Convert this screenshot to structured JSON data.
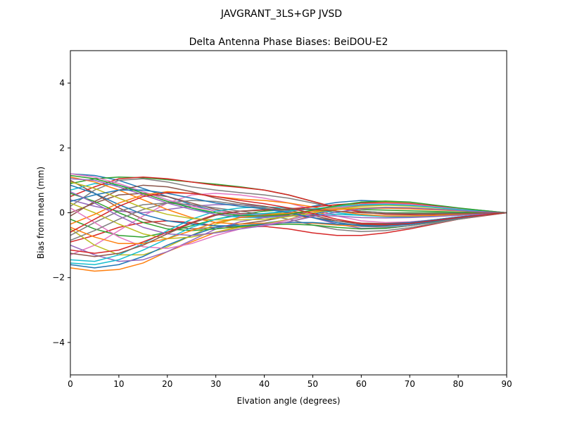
{
  "chart_data": {
    "type": "line",
    "suptitle": "JAVGRANT_3LS+GP JVSD",
    "title": "Delta Antenna Phase Biases: BeiDOU-E2",
    "xlabel": "Elvation angle (degrees)",
    "ylabel": "Bias from mean (mm)",
    "xlim": [
      0,
      90
    ],
    "ylim": [
      -5,
      5
    ],
    "xticks": [
      0,
      10,
      20,
      30,
      40,
      50,
      60,
      70,
      80,
      90
    ],
    "yticks": [
      -4,
      -2,
      0,
      2,
      4
    ],
    "ytick_labels": [
      "−4",
      "−2",
      "0",
      "2",
      "4"
    ],
    "grid": false,
    "legend": "none",
    "x": [
      0,
      5,
      10,
      15,
      20,
      25,
      30,
      35,
      40,
      45,
      50,
      55,
      60,
      65,
      70,
      75,
      80,
      85,
      90
    ],
    "colors": [
      "#1f77b4",
      "#ff7f0e",
      "#2ca02c",
      "#d62728",
      "#9467bd",
      "#8c564b",
      "#e377c2",
      "#7f7f7f",
      "#bcbd22",
      "#17becf"
    ],
    "series": [
      {
        "values": [
          1.2,
          1.15,
          1.0,
          0.75,
          0.5,
          0.25,
          0.05,
          -0.05,
          -0.05,
          0.05,
          0.2,
          0.32,
          0.38,
          0.35,
          0.3,
          0.22,
          0.14,
          0.07,
          0.0
        ]
      },
      {
        "values": [
          -1.7,
          -1.8,
          -1.75,
          -1.55,
          -1.2,
          -0.9,
          -0.6,
          -0.42,
          -0.38,
          -0.28,
          -0.1,
          0.1,
          0.25,
          0.3,
          0.28,
          0.2,
          0.12,
          0.06,
          0.0
        ]
      },
      {
        "values": [
          0.9,
          1.05,
          1.1,
          1.08,
          1.02,
          0.95,
          0.88,
          0.8,
          0.7,
          0.55,
          0.35,
          0.15,
          0.05,
          0.0,
          0.0,
          0.0,
          0.0,
          0.0,
          0.0
        ]
      },
      {
        "values": [
          -0.9,
          -0.7,
          -0.45,
          -0.3,
          -0.25,
          -0.3,
          -0.4,
          -0.45,
          -0.42,
          -0.5,
          -0.62,
          -0.7,
          -0.7,
          -0.62,
          -0.5,
          -0.35,
          -0.2,
          -0.1,
          0.0
        ]
      },
      {
        "values": [
          0.4,
          0.2,
          0.05,
          0.0,
          0.1,
          0.2,
          0.25,
          0.25,
          0.2,
          0.05,
          -0.15,
          -0.35,
          -0.48,
          -0.48,
          -0.4,
          -0.28,
          -0.16,
          -0.08,
          0.0
        ]
      },
      {
        "values": [
          1.0,
          0.6,
          0.15,
          -0.2,
          -0.4,
          -0.5,
          -0.45,
          -0.35,
          -0.25,
          -0.1,
          0.05,
          0.2,
          0.3,
          0.32,
          0.28,
          0.2,
          0.12,
          0.05,
          0.0
        ]
      },
      {
        "values": [
          -1.3,
          -1.0,
          -0.55,
          -0.1,
          0.3,
          0.55,
          0.6,
          0.55,
          0.45,
          0.3,
          0.1,
          -0.1,
          -0.25,
          -0.3,
          -0.28,
          -0.22,
          -0.14,
          -0.07,
          0.0
        ]
      },
      {
        "values": [
          0.2,
          0.7,
          1.0,
          1.05,
          0.95,
          0.8,
          0.7,
          0.62,
          0.55,
          0.45,
          0.3,
          0.15,
          0.05,
          0.0,
          -0.02,
          -0.02,
          -0.01,
          0.0,
          0.0
        ]
      },
      {
        "values": [
          -0.5,
          -1.0,
          -1.3,
          -1.3,
          -1.05,
          -0.7,
          -0.35,
          -0.15,
          -0.05,
          0.0,
          0.05,
          0.1,
          0.15,
          0.17,
          0.16,
          0.12,
          0.08,
          0.04,
          0.0
        ]
      },
      {
        "values": [
          0.7,
          0.9,
          0.85,
          0.65,
          0.4,
          0.15,
          -0.05,
          -0.15,
          -0.15,
          -0.1,
          -0.05,
          -0.05,
          -0.08,
          -0.1,
          -0.1,
          -0.08,
          -0.05,
          -0.02,
          0.0
        ]
      },
      {
        "values": [
          -1.6,
          -1.7,
          -1.6,
          -1.35,
          -1.0,
          -0.7,
          -0.45,
          -0.35,
          -0.32,
          -0.22,
          -0.05,
          0.12,
          0.22,
          0.26,
          0.24,
          0.18,
          0.11,
          0.05,
          0.0
        ]
      },
      {
        "values": [
          1.1,
          0.95,
          0.7,
          0.4,
          0.1,
          -0.15,
          -0.3,
          -0.35,
          -0.32,
          -0.3,
          -0.32,
          -0.38,
          -0.42,
          -0.4,
          -0.34,
          -0.25,
          -0.15,
          -0.07,
          0.0
        ]
      },
      {
        "values": [
          -0.2,
          -0.5,
          -0.7,
          -0.75,
          -0.6,
          -0.4,
          -0.2,
          -0.05,
          0.05,
          0.1,
          0.12,
          0.12,
          0.1,
          0.08,
          0.06,
          0.04,
          0.02,
          0.01,
          0.0
        ]
      },
      {
        "values": [
          0.5,
          0.8,
          1.05,
          1.1,
          1.05,
          0.95,
          0.85,
          0.78,
          0.7,
          0.55,
          0.35,
          0.15,
          0.02,
          -0.05,
          -0.06,
          -0.05,
          -0.03,
          -0.01,
          0.0
        ]
      },
      {
        "values": [
          -1.0,
          -1.3,
          -1.5,
          -1.45,
          -1.2,
          -0.85,
          -0.5,
          -0.28,
          -0.15,
          -0.05,
          0.05,
          0.15,
          0.22,
          0.25,
          0.23,
          0.17,
          0.1,
          0.05,
          0.0
        ]
      },
      {
        "values": [
          0.0,
          0.3,
          0.55,
          0.6,
          0.5,
          0.3,
          0.1,
          -0.02,
          -0.05,
          -0.08,
          -0.15,
          -0.25,
          -0.32,
          -0.33,
          -0.3,
          -0.22,
          -0.13,
          -0.06,
          0.0
        ]
      },
      {
        "values": [
          1.2,
          1.1,
          0.9,
          0.65,
          0.4,
          0.2,
          0.05,
          -0.05,
          -0.08,
          -0.05,
          0.05,
          0.2,
          0.3,
          0.34,
          0.3,
          0.22,
          0.13,
          0.06,
          0.0
        ]
      },
      {
        "values": [
          -0.7,
          -0.3,
          0.05,
          0.25,
          0.3,
          0.25,
          0.15,
          0.05,
          -0.05,
          -0.2,
          -0.38,
          -0.52,
          -0.58,
          -0.55,
          -0.46,
          -0.33,
          -0.2,
          -0.09,
          0.0
        ]
      },
      {
        "values": [
          0.3,
          0.0,
          -0.35,
          -0.65,
          -0.8,
          -0.75,
          -0.6,
          -0.45,
          -0.35,
          -0.2,
          0.0,
          0.18,
          0.3,
          0.33,
          0.29,
          0.21,
          0.13,
          0.06,
          0.0
        ]
      },
      {
        "values": [
          -1.45,
          -1.5,
          -1.3,
          -0.95,
          -0.55,
          -0.2,
          0.05,
          0.15,
          0.18,
          0.15,
          0.08,
          0.0,
          -0.08,
          -0.12,
          -0.13,
          -0.11,
          -0.07,
          -0.03,
          0.0
        ]
      },
      {
        "values": [
          0.85,
          0.6,
          0.25,
          -0.05,
          -0.25,
          -0.35,
          -0.4,
          -0.4,
          -0.35,
          -0.3,
          -0.3,
          -0.35,
          -0.38,
          -0.36,
          -0.3,
          -0.22,
          -0.13,
          -0.06,
          0.0
        ]
      },
      {
        "values": [
          -0.35,
          -0.05,
          0.3,
          0.55,
          0.65,
          0.6,
          0.5,
          0.42,
          0.38,
          0.3,
          0.18,
          0.05,
          -0.05,
          -0.1,
          -0.1,
          -0.08,
          -0.05,
          -0.02,
          0.0
        ]
      },
      {
        "values": [
          0.6,
          0.35,
          0.0,
          -0.3,
          -0.5,
          -0.55,
          -0.5,
          -0.42,
          -0.38,
          -0.35,
          -0.38,
          -0.45,
          -0.5,
          -0.48,
          -0.4,
          -0.29,
          -0.18,
          -0.08,
          0.0
        ]
      },
      {
        "values": [
          -1.15,
          -1.25,
          -1.15,
          -0.9,
          -0.6,
          -0.3,
          -0.05,
          0.05,
          0.08,
          0.12,
          0.18,
          0.25,
          0.3,
          0.31,
          0.28,
          0.21,
          0.13,
          0.06,
          0.0
        ]
      },
      {
        "values": [
          1.05,
          1.0,
          0.8,
          0.55,
          0.3,
          0.1,
          -0.05,
          -0.12,
          -0.12,
          -0.1,
          -0.08,
          -0.1,
          -0.15,
          -0.16,
          -0.15,
          -0.12,
          -0.08,
          -0.04,
          0.0
        ]
      },
      {
        "values": [
          -0.1,
          0.35,
          0.7,
          0.85,
          0.8,
          0.65,
          0.45,
          0.3,
          0.2,
          0.08,
          -0.08,
          -0.25,
          -0.36,
          -0.38,
          -0.33,
          -0.24,
          -0.15,
          -0.07,
          0.0
        ]
      },
      {
        "values": [
          0.15,
          -0.3,
          -0.75,
          -1.05,
          -1.1,
          -0.95,
          -0.7,
          -0.5,
          -0.38,
          -0.22,
          -0.02,
          0.15,
          0.26,
          0.29,
          0.26,
          0.19,
          0.12,
          0.05,
          0.0
        ]
      },
      {
        "values": [
          -0.85,
          -0.55,
          -0.2,
          0.1,
          0.3,
          0.38,
          0.35,
          0.25,
          0.15,
          0.02,
          -0.15,
          -0.3,
          -0.42,
          -0.45,
          -0.4,
          -0.3,
          -0.18,
          -0.08,
          0.0
        ]
      },
      {
        "values": [
          0.95,
          0.75,
          0.45,
          0.15,
          -0.05,
          -0.18,
          -0.22,
          -0.22,
          -0.2,
          -0.12,
          0.0,
          0.12,
          0.2,
          0.23,
          0.21,
          0.16,
          0.1,
          0.05,
          0.0
        ]
      },
      {
        "values": [
          -1.55,
          -1.6,
          -1.45,
          -1.15,
          -0.8,
          -0.45,
          -0.2,
          -0.08,
          -0.02,
          0.05,
          0.12,
          0.2,
          0.25,
          0.26,
          0.23,
          0.17,
          0.1,
          0.05,
          0.0
        ]
      },
      {
        "values": [
          0.35,
          0.55,
          0.7,
          0.7,
          0.6,
          0.45,
          0.3,
          0.2,
          0.12,
          0.0,
          -0.15,
          -0.3,
          -0.4,
          -0.41,
          -0.36,
          -0.26,
          -0.16,
          -0.07,
          0.0
        ]
      },
      {
        "values": [
          -0.45,
          -0.75,
          -0.95,
          -0.95,
          -0.8,
          -0.55,
          -0.3,
          -0.15,
          -0.08,
          -0.02,
          0.05,
          0.1,
          0.13,
          0.14,
          0.12,
          0.09,
          0.06,
          0.03,
          0.0
        ]
      },
      {
        "values": [
          1.15,
          1.05,
          0.85,
          0.6,
          0.35,
          0.15,
          0.0,
          -0.08,
          -0.1,
          -0.05,
          0.08,
          0.22,
          0.33,
          0.36,
          0.33,
          0.24,
          0.15,
          0.07,
          0.0
        ]
      },
      {
        "values": [
          -0.6,
          -0.2,
          0.2,
          0.5,
          0.62,
          0.6,
          0.5,
          0.38,
          0.28,
          0.15,
          -0.02,
          -0.2,
          -0.33,
          -0.37,
          -0.33,
          -0.24,
          -0.15,
          -0.07,
          0.0
        ]
      },
      {
        "values": [
          0.65,
          0.3,
          -0.1,
          -0.45,
          -0.65,
          -0.7,
          -0.62,
          -0.5,
          -0.4,
          -0.28,
          -0.12,
          0.02,
          0.12,
          0.16,
          0.15,
          0.11,
          0.07,
          0.03,
          0.0
        ]
      },
      {
        "values": [
          -1.25,
          -1.35,
          -1.25,
          -1.0,
          -0.65,
          -0.32,
          -0.08,
          0.05,
          0.1,
          0.12,
          0.1,
          0.05,
          0.0,
          -0.03,
          -0.04,
          -0.04,
          -0.03,
          -0.01,
          0.0
        ]
      }
    ]
  }
}
